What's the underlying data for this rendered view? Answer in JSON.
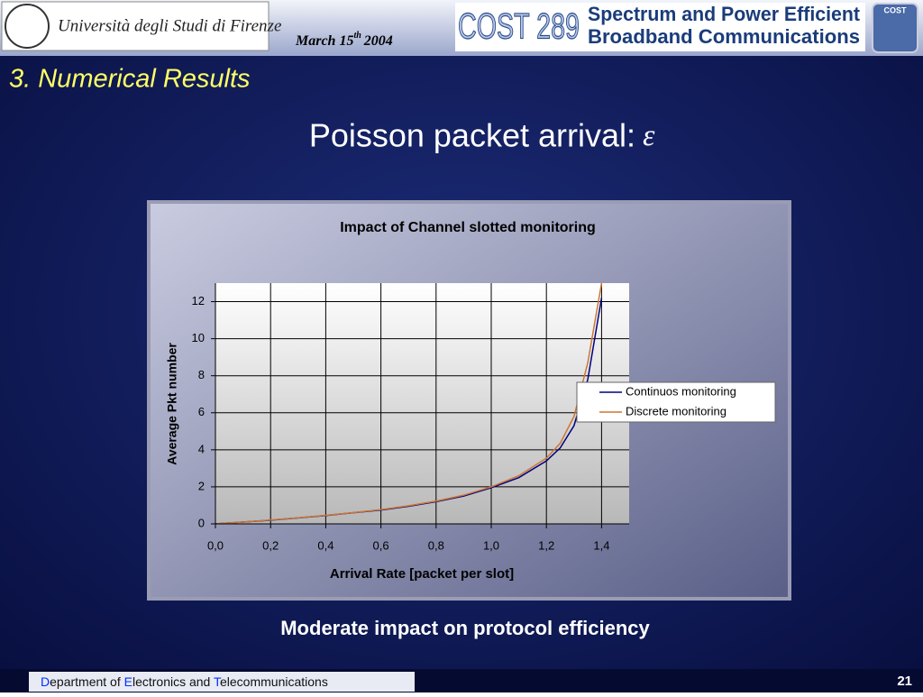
{
  "header": {
    "university": "Università degli Studi di Firenze",
    "date": {
      "main": "March 15",
      "suffix": "th",
      "year": "2004"
    },
    "cost_logo": "COST 289",
    "cost_badge": "COST",
    "project_line1": "Spectrum and Power Efficient",
    "project_line2": "Broadband Communications"
  },
  "section": "3. Numerical Results",
  "slide_title": {
    "text": "Poisson packet arrival:",
    "symbol": "ε"
  },
  "chart_data": {
    "type": "line",
    "title": "Impact of Channel slotted monitoring",
    "x_label": "Arrival Rate [packet per slot]",
    "y_label": "Average Pkt number",
    "x": [
      0,
      0.1,
      0.2,
      0.3,
      0.4,
      0.5,
      0.6,
      0.7,
      0.8,
      0.9,
      1.0,
      1.1,
      1.2,
      1.25,
      1.3,
      1.35,
      1.4
    ],
    "series": [
      {
        "name": "Continuos monitoring",
        "color": "#000080",
        "values": [
          0,
          0.1,
          0.2,
          0.32,
          0.45,
          0.6,
          0.75,
          0.95,
          1.2,
          1.5,
          1.95,
          2.5,
          3.4,
          4.1,
          5.3,
          7.8,
          12.2
        ]
      },
      {
        "name": "Discrete monitoring",
        "color": "#cc7733",
        "values": [
          0,
          0.1,
          0.21,
          0.33,
          0.46,
          0.61,
          0.77,
          0.98,
          1.23,
          1.55,
          2.0,
          2.6,
          3.55,
          4.35,
          5.8,
          8.7,
          13.0
        ]
      }
    ],
    "xlim": [
      0,
      1.5
    ],
    "xticks": [
      {
        "value": 0,
        "label": "0,0"
      },
      {
        "value": 0.2,
        "label": "0,2"
      },
      {
        "value": 0.4,
        "label": "0,4"
      },
      {
        "value": 0.6,
        "label": "0,6"
      },
      {
        "value": 0.8,
        "label": "0,8"
      },
      {
        "value": 1.0,
        "label": "1,0"
      },
      {
        "value": 1.2,
        "label": "1,2"
      },
      {
        "value": 1.4,
        "label": "1,4"
      }
    ],
    "ylim": [
      0,
      13
    ],
    "yticks": [
      0,
      2,
      4,
      6,
      8,
      10,
      12
    ],
    "grid": true,
    "legend": "right"
  },
  "conclusion": "Moderate impact on protocol efficiency",
  "footer": {
    "parts": [
      "D",
      "epartment of ",
      "E",
      "lectronics and ",
      "T",
      "elecommunications"
    ],
    "page": "21"
  }
}
